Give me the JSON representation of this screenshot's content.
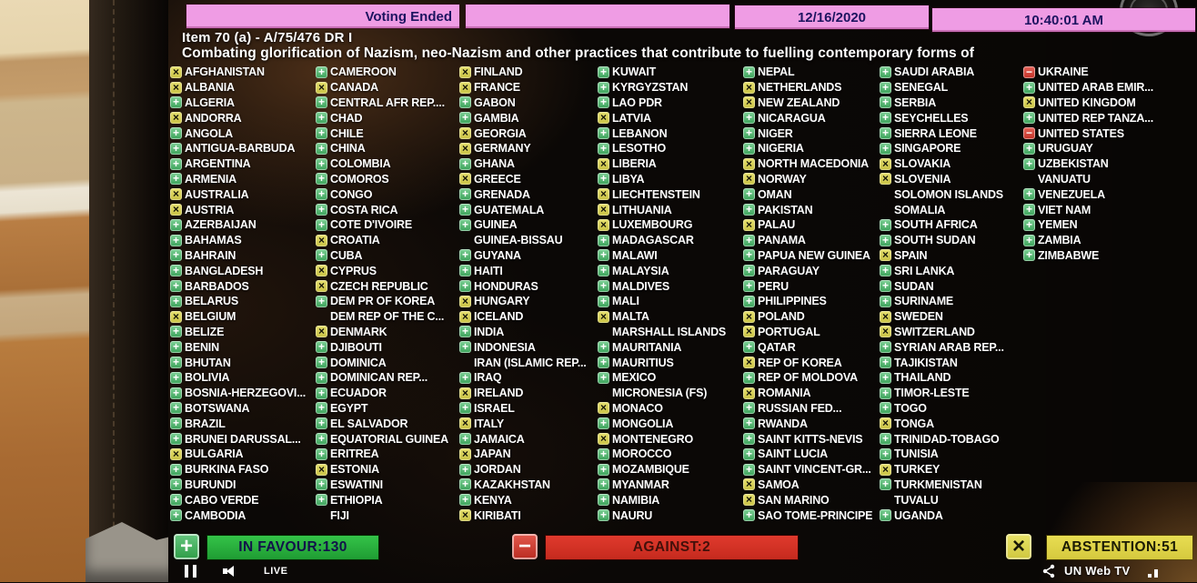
{
  "header": {
    "voting_status": "Voting Ended",
    "date": "12/16/2020",
    "time": "10:40:01 AM",
    "item": "Item 70 (a) - A/75/476 DR I",
    "title": "Combating glorification of Nazism, neo-Nazism and other practices that contribute to fuelling contemporary forms of"
  },
  "vote_legend": {
    "glyphs": {
      "Y": "+",
      "A": "×",
      "N": "−"
    },
    "meaning": {
      "Y": "in favour",
      "A": "abstention",
      "N": "against",
      "-": "absent"
    }
  },
  "colors": {
    "favour_green": "#3fae53",
    "against_red": "#d8453a",
    "abstain_yellow": "#d9d355",
    "header_pink": "#ef9ce4"
  },
  "columns": [
    [
      [
        "AFGHANISTAN",
        "A"
      ],
      [
        "ALBANIA",
        "A"
      ],
      [
        "ALGERIA",
        "Y"
      ],
      [
        "ANDORRA",
        "A"
      ],
      [
        "ANGOLA",
        "Y"
      ],
      [
        "ANTIGUA-BARBUDA",
        "Y"
      ],
      [
        "ARGENTINA",
        "Y"
      ],
      [
        "ARMENIA",
        "Y"
      ],
      [
        "AUSTRALIA",
        "A"
      ],
      [
        "AUSTRIA",
        "A"
      ],
      [
        "AZERBAIJAN",
        "Y"
      ],
      [
        "BAHAMAS",
        "Y"
      ],
      [
        "BAHRAIN",
        "Y"
      ],
      [
        "BANGLADESH",
        "Y"
      ],
      [
        "BARBADOS",
        "Y"
      ],
      [
        "BELARUS",
        "Y"
      ],
      [
        "BELGIUM",
        "A"
      ],
      [
        "BELIZE",
        "Y"
      ],
      [
        "BENIN",
        "Y"
      ],
      [
        "BHUTAN",
        "Y"
      ],
      [
        "BOLIVIA",
        "Y"
      ],
      [
        "BOSNIA-HERZEGOVI...",
        "Y"
      ],
      [
        "BOTSWANA",
        "Y"
      ],
      [
        "BRAZIL",
        "Y"
      ],
      [
        "BRUNEI DARUSSAL...",
        "Y"
      ],
      [
        "BULGARIA",
        "A"
      ],
      [
        "BURKINA FASO",
        "Y"
      ],
      [
        "BURUNDI",
        "Y"
      ],
      [
        "CABO VERDE",
        "Y"
      ],
      [
        "CAMBODIA",
        "Y"
      ]
    ],
    [
      [
        "CAMEROON",
        "Y"
      ],
      [
        "CANADA",
        "A"
      ],
      [
        "CENTRAL AFR REP....",
        "Y"
      ],
      [
        "CHAD",
        "Y"
      ],
      [
        "CHILE",
        "Y"
      ],
      [
        "CHINA",
        "Y"
      ],
      [
        "COLOMBIA",
        "Y"
      ],
      [
        "COMOROS",
        "Y"
      ],
      [
        "CONGO",
        "Y"
      ],
      [
        "COSTA RICA",
        "Y"
      ],
      [
        "COTE D'IVOIRE",
        "Y"
      ],
      [
        "CROATIA",
        "A"
      ],
      [
        "CUBA",
        "Y"
      ],
      [
        "CYPRUS",
        "A"
      ],
      [
        "CZECH REPUBLIC",
        "A"
      ],
      [
        "DEM PR OF KOREA",
        "Y"
      ],
      [
        "DEM REP OF THE C...",
        "-"
      ],
      [
        "DENMARK",
        "A"
      ],
      [
        "DJIBOUTI",
        "Y"
      ],
      [
        "DOMINICA",
        "Y"
      ],
      [
        "DOMINICAN REP...",
        "Y"
      ],
      [
        "ECUADOR",
        "Y"
      ],
      [
        "EGYPT",
        "Y"
      ],
      [
        "EL SALVADOR",
        "Y"
      ],
      [
        "EQUATORIAL GUINEA",
        "Y"
      ],
      [
        "ERITREA",
        "Y"
      ],
      [
        "ESTONIA",
        "A"
      ],
      [
        "ESWATINI",
        "Y"
      ],
      [
        "ETHIOPIA",
        "Y"
      ],
      [
        "FIJI",
        "-"
      ]
    ],
    [
      [
        "FINLAND",
        "A"
      ],
      [
        "FRANCE",
        "A"
      ],
      [
        "GABON",
        "Y"
      ],
      [
        "GAMBIA",
        "Y"
      ],
      [
        "GEORGIA",
        "A"
      ],
      [
        "GERMANY",
        "A"
      ],
      [
        "GHANA",
        "Y"
      ],
      [
        "GREECE",
        "A"
      ],
      [
        "GRENADA",
        "Y"
      ],
      [
        "GUATEMALA",
        "Y"
      ],
      [
        "GUINEA",
        "Y"
      ],
      [
        "GUINEA-BISSAU",
        "-"
      ],
      [
        "GUYANA",
        "Y"
      ],
      [
        "HAITI",
        "Y"
      ],
      [
        "HONDURAS",
        "Y"
      ],
      [
        "HUNGARY",
        "A"
      ],
      [
        "ICELAND",
        "A"
      ],
      [
        "INDIA",
        "Y"
      ],
      [
        "INDONESIA",
        "Y"
      ],
      [
        "IRAN (ISLAMIC REP...",
        "-"
      ],
      [
        "IRAQ",
        "Y"
      ],
      [
        "IRELAND",
        "A"
      ],
      [
        "ISRAEL",
        "Y"
      ],
      [
        "ITALY",
        "A"
      ],
      [
        "JAMAICA",
        "Y"
      ],
      [
        "JAPAN",
        "A"
      ],
      [
        "JORDAN",
        "Y"
      ],
      [
        "KAZAKHSTAN",
        "Y"
      ],
      [
        "KENYA",
        "Y"
      ],
      [
        "KIRIBATI",
        "A"
      ]
    ],
    [
      [
        "KUWAIT",
        "Y"
      ],
      [
        "KYRGYZSTAN",
        "Y"
      ],
      [
        "LAO PDR",
        "Y"
      ],
      [
        "LATVIA",
        "A"
      ],
      [
        "LEBANON",
        "Y"
      ],
      [
        "LESOTHO",
        "Y"
      ],
      [
        "LIBERIA",
        "A"
      ],
      [
        "LIBYA",
        "Y"
      ],
      [
        "LIECHTENSTEIN",
        "A"
      ],
      [
        "LITHUANIA",
        "A"
      ],
      [
        "LUXEMBOURG",
        "A"
      ],
      [
        "MADAGASCAR",
        "Y"
      ],
      [
        "MALAWI",
        "Y"
      ],
      [
        "MALAYSIA",
        "Y"
      ],
      [
        "MALDIVES",
        "Y"
      ],
      [
        "MALI",
        "Y"
      ],
      [
        "MALTA",
        "A"
      ],
      [
        "MARSHALL ISLANDS",
        "-"
      ],
      [
        "MAURITANIA",
        "Y"
      ],
      [
        "MAURITIUS",
        "Y"
      ],
      [
        "MEXICO",
        "Y"
      ],
      [
        "MICRONESIA (FS)",
        "-"
      ],
      [
        "MONACO",
        "A"
      ],
      [
        "MONGOLIA",
        "Y"
      ],
      [
        "MONTENEGRO",
        "A"
      ],
      [
        "MOROCCO",
        "Y"
      ],
      [
        "MOZAMBIQUE",
        "Y"
      ],
      [
        "MYANMAR",
        "Y"
      ],
      [
        "NAMIBIA",
        "Y"
      ],
      [
        "NAURU",
        "Y"
      ]
    ],
    [
      [
        "NEPAL",
        "Y"
      ],
      [
        "NETHERLANDS",
        "A"
      ],
      [
        "NEW ZEALAND",
        "A"
      ],
      [
        "NICARAGUA",
        "Y"
      ],
      [
        "NIGER",
        "Y"
      ],
      [
        "NIGERIA",
        "Y"
      ],
      [
        "NORTH MACEDONIA",
        "A"
      ],
      [
        "NORWAY",
        "A"
      ],
      [
        "OMAN",
        "Y"
      ],
      [
        "PAKISTAN",
        "Y"
      ],
      [
        "PALAU",
        "A"
      ],
      [
        "PANAMA",
        "Y"
      ],
      [
        "PAPUA NEW GUINEA",
        "Y"
      ],
      [
        "PARAGUAY",
        "Y"
      ],
      [
        "PERU",
        "Y"
      ],
      [
        "PHILIPPINES",
        "Y"
      ],
      [
        "POLAND",
        "A"
      ],
      [
        "PORTUGAL",
        "A"
      ],
      [
        "QATAR",
        "Y"
      ],
      [
        "REP OF KOREA",
        "A"
      ],
      [
        "REP OF MOLDOVA",
        "Y"
      ],
      [
        "ROMANIA",
        "A"
      ],
      [
        "RUSSIAN FED...",
        "Y"
      ],
      [
        "RWANDA",
        "Y"
      ],
      [
        "SAINT KITTS-NEVIS",
        "Y"
      ],
      [
        "SAINT LUCIA",
        "Y"
      ],
      [
        "SAINT VINCENT-GR...",
        "Y"
      ],
      [
        "SAMOA",
        "A"
      ],
      [
        "SAN MARINO",
        "A"
      ],
      [
        "SAO TOME-PRINCIPE",
        "Y"
      ]
    ],
    [
      [
        "SAUDI ARABIA",
        "Y"
      ],
      [
        "SENEGAL",
        "Y"
      ],
      [
        "SERBIA",
        "Y"
      ],
      [
        "SEYCHELLES",
        "Y"
      ],
      [
        "SIERRA LEONE",
        "Y"
      ],
      [
        "SINGAPORE",
        "Y"
      ],
      [
        "SLOVAKIA",
        "A"
      ],
      [
        "SLOVENIA",
        "A"
      ],
      [
        "SOLOMON ISLANDS",
        "-"
      ],
      [
        "SOMALIA",
        "-"
      ],
      [
        "SOUTH AFRICA",
        "Y"
      ],
      [
        "SOUTH SUDAN",
        "Y"
      ],
      [
        "SPAIN",
        "A"
      ],
      [
        "SRI LANKA",
        "Y"
      ],
      [
        "SUDAN",
        "Y"
      ],
      [
        "SURINAME",
        "Y"
      ],
      [
        "SWEDEN",
        "A"
      ],
      [
        "SWITZERLAND",
        "A"
      ],
      [
        "SYRIAN ARAB REP...",
        "Y"
      ],
      [
        "TAJIKISTAN",
        "Y"
      ],
      [
        "THAILAND",
        "Y"
      ],
      [
        "TIMOR-LESTE",
        "Y"
      ],
      [
        "TOGO",
        "Y"
      ],
      [
        "TONGA",
        "A"
      ],
      [
        "TRINIDAD-TOBAGO",
        "Y"
      ],
      [
        "TUNISIA",
        "Y"
      ],
      [
        "TURKEY",
        "A"
      ],
      [
        "TURKMENISTAN",
        "Y"
      ],
      [
        "TUVALU",
        "-"
      ],
      [
        "UGANDA",
        "Y"
      ]
    ],
    [
      [
        "UKRAINE",
        "N"
      ],
      [
        "UNITED ARAB EMIR...",
        "Y"
      ],
      [
        "UNITED KINGDOM",
        "A"
      ],
      [
        "UNITED REP TANZA...",
        "Y"
      ],
      [
        "UNITED STATES",
        "N"
      ],
      [
        "URUGUAY",
        "Y"
      ],
      [
        "UZBEKISTAN",
        "Y"
      ],
      [
        "VANUATU",
        "-"
      ],
      [
        "VENEZUELA",
        "Y"
      ],
      [
        "VIET NAM",
        "Y"
      ],
      [
        "YEMEN",
        "Y"
      ],
      [
        "ZAMBIA",
        "Y"
      ],
      [
        "ZIMBABWE",
        "Y"
      ]
    ]
  ],
  "results": {
    "in_favour": "IN FAVOUR:130",
    "against": "AGAINST:2",
    "abstention": "ABSTENTION:51"
  },
  "player": {
    "live": "LIVE",
    "brand": "UN Web TV"
  }
}
